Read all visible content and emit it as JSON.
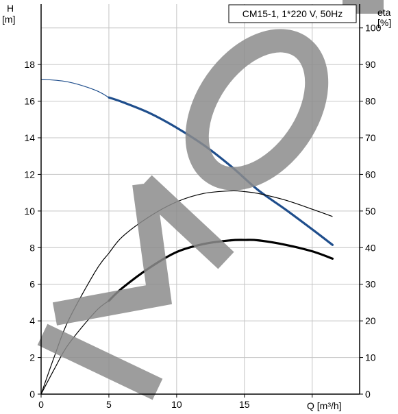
{
  "chart_data": {
    "type": "line",
    "title": "CM15-1, 1*220 V, 50Hz",
    "xlabel": "Q [m³/h]",
    "ylabel_left_top": "H",
    "ylabel_left_unit": "[m]",
    "ylabel_right_top": "eta",
    "ylabel_right_unit": "[%]",
    "xlim": [
      0,
      23.5
    ],
    "ylim_left": [
      0,
      21.3
    ],
    "ylim_right": [
      0,
      106.5
    ],
    "x_ticks": [
      0,
      5,
      10,
      15
    ],
    "x_tick_labels": [
      "0",
      "5",
      "10",
      "15"
    ],
    "y_left_ticks": [
      0,
      2,
      4,
      6,
      8,
      10,
      12,
      14,
      16,
      18
    ],
    "y_left_tick_labels": [
      "0",
      "2",
      "4",
      "6",
      "8",
      "10",
      "12",
      "14",
      "16",
      "18"
    ],
    "y_right_ticks": [
      0,
      10,
      20,
      30,
      40,
      50,
      60,
      70,
      80,
      90,
      100
    ],
    "y_right_tick_labels": [
      "0",
      "10",
      "20",
      "30",
      "40",
      "50",
      "60",
      "70",
      "80",
      "90",
      "100"
    ],
    "grid": true,
    "series": [
      {
        "axis": "left",
        "color": "#1f4e8c",
        "thin_until_x": 5,
        "x": [
          0,
          2,
          4,
          5,
          6,
          8,
          10,
          12,
          14,
          16,
          18,
          20,
          21.5
        ],
        "y": [
          17.2,
          17.05,
          16.6,
          16.2,
          15.95,
          15.35,
          14.55,
          13.6,
          12.45,
          11.15,
          10.1,
          9.0,
          8.15
        ]
      },
      {
        "axis": "right",
        "color": "#000000",
        "thin_until_x": 5,
        "x": [
          0,
          1,
          2,
          4,
          5,
          6,
          8,
          10,
          12,
          14,
          15,
          16,
          18,
          20,
          21.5
        ],
        "y": [
          0,
          7,
          13.5,
          22.5,
          25.5,
          29,
          34.5,
          38.8,
          41,
          42,
          42.1,
          42,
          40.8,
          39,
          37
        ]
      },
      {
        "axis": "right",
        "color": "#000000",
        "thin_until_x": 21.5,
        "x": [
          0,
          1,
          2,
          4,
          5,
          6,
          8,
          10,
          12,
          14,
          15,
          16,
          18,
          20,
          21.5
        ],
        "y": [
          0,
          10.5,
          20,
          33.5,
          38.5,
          43,
          48.5,
          52.5,
          54.8,
          55.5,
          55.3,
          54.8,
          53,
          50.5,
          48.5
        ]
      }
    ]
  }
}
